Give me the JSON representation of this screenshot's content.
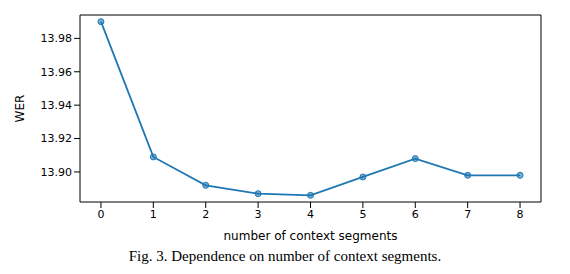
{
  "chart_data": {
    "type": "line",
    "caption": "Fig. 3. Dependence on number of context segments.",
    "x_label": "number of context segments",
    "y_label": "WER",
    "x": [
      0,
      1,
      2,
      3,
      4,
      5,
      6,
      7,
      8
    ],
    "values": [
      13.99,
      13.909,
      13.892,
      13.887,
      13.886,
      13.897,
      13.908,
      13.898,
      13.898
    ],
    "color": "#1f77b4",
    "marker": "circle",
    "xlim": [
      -0.4,
      8.4
    ],
    "xticks": [
      0,
      1,
      2,
      3,
      4,
      5,
      6,
      7,
      8
    ],
    "ylim": [
      13.882,
      13.994
    ],
    "yticks": [
      {
        "value": 13.9,
        "label": "13.90"
      },
      {
        "value": 13.92,
        "label": "13.92"
      },
      {
        "value": 13.94,
        "label": "13.94"
      },
      {
        "value": 13.96,
        "label": "13.96"
      },
      {
        "value": 13.98,
        "label": "13.98"
      }
    ],
    "grid": false
  }
}
